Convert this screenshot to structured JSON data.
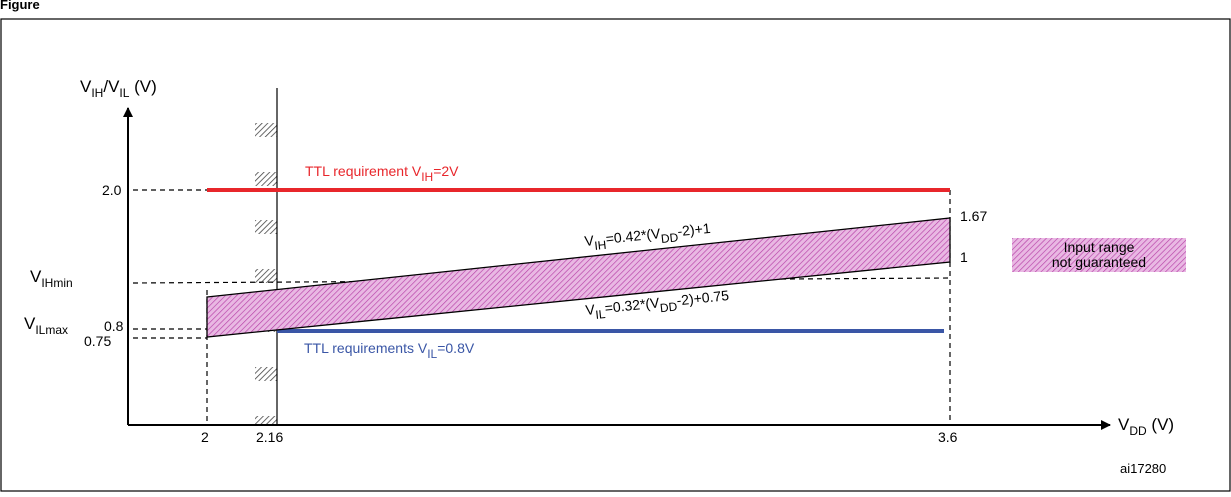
{
  "title_fragment": "Figure",
  "y_axis": {
    "label_main": "V",
    "label_sub1": "IH",
    "label_sep": "/V",
    "label_sub2": "IL",
    "label_unit": " (V)"
  },
  "x_axis": {
    "label_main": "V",
    "label_sub": "DD",
    "label_unit": " (V)"
  },
  "y_ticks": {
    "v2_0": "2.0",
    "v0_8": "0.8",
    "v0_75": "0.75",
    "vihmin_main": "V",
    "vihmin_sub": "IHmin",
    "vilmax_main": "V",
    "vilmax_sub": "ILmax"
  },
  "x_ticks": {
    "x2": "2",
    "x2_16": "2.16",
    "x3_6": "3.6"
  },
  "right_values": {
    "top": "1.67",
    "bottom": "1"
  },
  "ttl_high": {
    "text": "TTL requirement  V",
    "sub": "IH",
    "tail": "=2V",
    "color": "#e8262b"
  },
  "ttl_low": {
    "text": "TTL requirements V",
    "sub": "IL",
    "tail": "=0.8V",
    "color": "#3a56a6"
  },
  "eq_high": {
    "a": "V",
    "sub1": "IH",
    "b": "=0.42*(V",
    "sub2": "DD",
    "c": "-2)+1"
  },
  "eq_low": {
    "a": "V",
    "sub1": "IL",
    "b": "=0.32*(V",
    "sub2": "DD",
    "c": "-2)+0.75"
  },
  "legend": {
    "line1": "Input range",
    "line2": "not guaranteed",
    "color": "#c9a0c8"
  },
  "ref_code": "ai17280"
}
